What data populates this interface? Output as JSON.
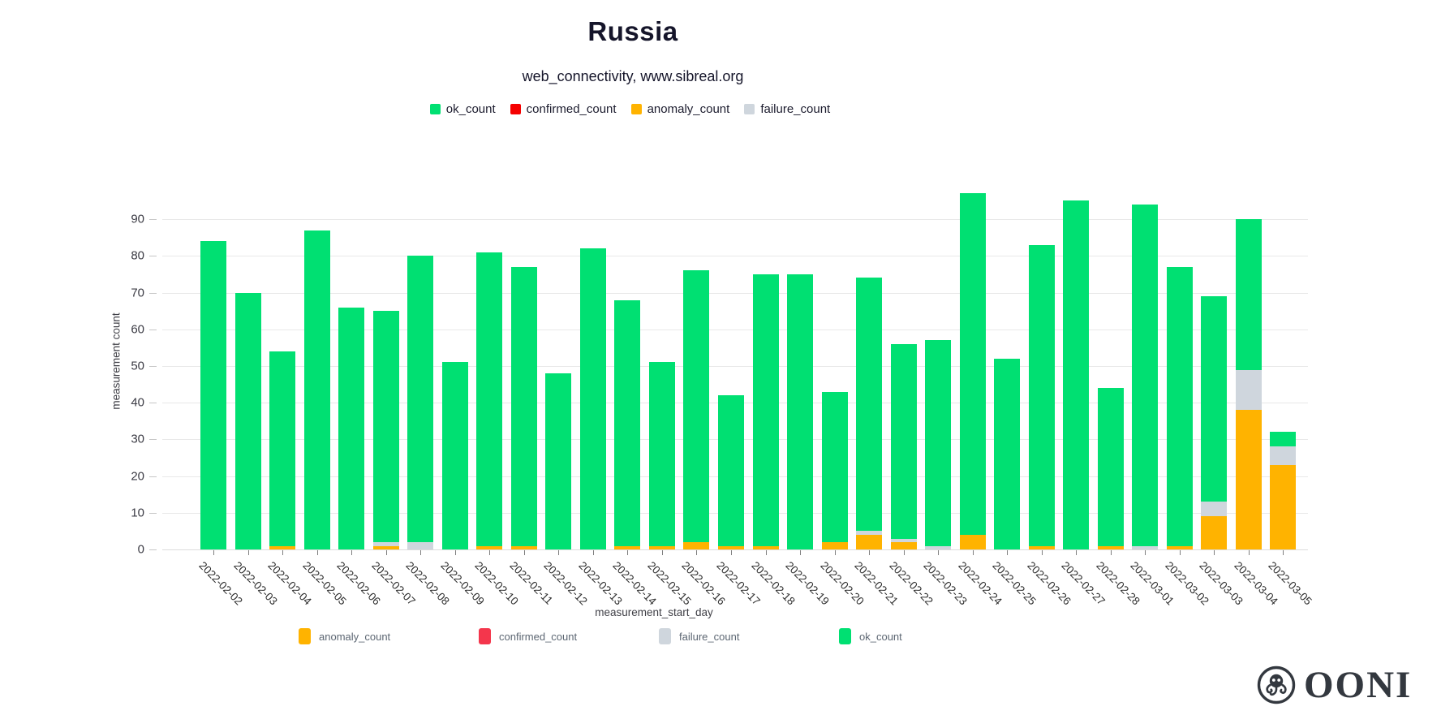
{
  "header": {
    "title": "Russia",
    "subtitle": "web_connectivity, www.sibreal.org"
  },
  "top_legend": [
    {
      "label": "ok_count",
      "color": "#00e072"
    },
    {
      "label": "confirmed_count",
      "color": "#f50000"
    },
    {
      "label": "anomaly_count",
      "color": "#ffb300"
    },
    {
      "label": "failure_count",
      "color": "#cfd6dd"
    }
  ],
  "bottom_legend": [
    {
      "label": "anomaly_count",
      "color": "#ffb300"
    },
    {
      "label": "confirmed_count",
      "color": "#f4364c"
    },
    {
      "label": "failure_count",
      "color": "#cfd6dd"
    },
    {
      "label": "ok_count",
      "color": "#00e072"
    }
  ],
  "chart_data": {
    "type": "bar",
    "stacked": true,
    "title": "Russia",
    "subtitle": "web_connectivity, www.sibreal.org",
    "xlabel": "measurement_start_day",
    "ylabel": "measurement count",
    "ylim": [
      0,
      97
    ],
    "yticks": [
      0,
      10,
      20,
      30,
      40,
      50,
      60,
      70,
      80,
      90
    ],
    "grid": true,
    "legend_position": "top and bottom",
    "categories": [
      "2022-02-02",
      "2022-02-03",
      "2022-02-04",
      "2022-02-05",
      "2022-02-06",
      "2022-02-07",
      "2022-02-08",
      "2022-02-09",
      "2022-02-10",
      "2022-02-11",
      "2022-02-12",
      "2022-02-13",
      "2022-02-14",
      "2022-02-15",
      "2022-02-16",
      "2022-02-17",
      "2022-02-18",
      "2022-02-19",
      "2022-02-20",
      "2022-02-21",
      "2022-02-22",
      "2022-02-23",
      "2022-02-24",
      "2022-02-25",
      "2022-02-26",
      "2022-02-27",
      "2022-02-28",
      "2022-03-01",
      "2022-03-02",
      "2022-03-03",
      "2022-03-04",
      "2022-03-05"
    ],
    "stack_order_bottom_to_top": [
      "anomaly_count",
      "confirmed_count",
      "failure_count",
      "ok_count"
    ],
    "series": [
      {
        "name": "anomaly_count",
        "color": "#ffb300",
        "values": [
          0,
          0,
          1,
          0,
          0,
          1,
          0,
          0,
          1,
          1,
          0,
          0,
          1,
          1,
          2,
          1,
          1,
          0,
          2,
          4,
          2,
          0,
          4,
          0,
          1,
          0,
          1,
          0,
          1,
          9,
          38,
          23
        ]
      },
      {
        "name": "confirmed_count",
        "color": "#f4364c",
        "values": [
          0,
          0,
          0,
          0,
          0,
          0,
          0,
          0,
          0,
          0,
          0,
          0,
          0,
          0,
          0,
          0,
          0,
          0,
          0,
          0,
          0,
          0,
          0,
          0,
          0,
          0,
          0,
          0,
          0,
          0,
          0,
          0
        ]
      },
      {
        "name": "failure_count",
        "color": "#cfd6dd",
        "values": [
          0,
          0,
          0,
          0,
          0,
          1,
          2,
          0,
          0,
          0,
          0,
          0,
          0,
          0,
          0,
          0,
          0,
          0,
          0,
          1,
          1,
          1,
          0,
          0,
          0,
          0,
          0,
          1,
          0,
          4,
          11,
          5
        ]
      },
      {
        "name": "ok_count",
        "color": "#00e072",
        "values": [
          84,
          70,
          53,
          87,
          66,
          63,
          78,
          51,
          80,
          76,
          48,
          82,
          67,
          50,
          74,
          41,
          74,
          75,
          41,
          69,
          53,
          56,
          93,
          52,
          82,
          95,
          43,
          93,
          76,
          56,
          41,
          4
        ]
      }
    ],
    "totals": [
      84,
      70,
      54,
      87,
      66,
      65,
      80,
      51,
      81,
      77,
      48,
      82,
      68,
      51,
      76,
      42,
      75,
      75,
      43,
      74,
      56,
      57,
      97,
      52,
      83,
      95,
      44,
      94,
      77,
      69,
      90,
      32
    ]
  },
  "logo": {
    "text": "OONI"
  }
}
